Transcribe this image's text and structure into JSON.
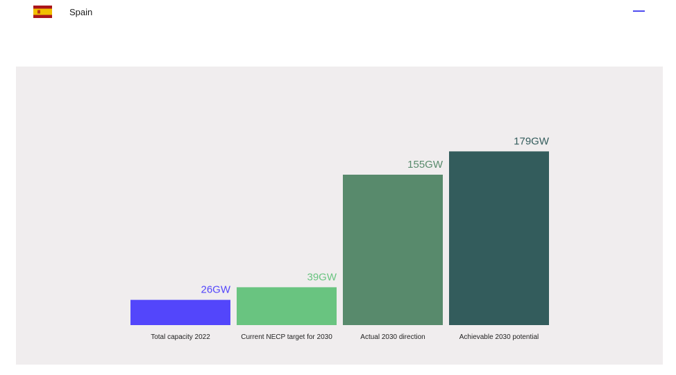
{
  "header": {
    "country": "Spain",
    "flag_icon": "spain-flag-icon",
    "collapse_icon": "minus-icon",
    "accent_color": "#4e4bf0"
  },
  "chart_data": {
    "type": "bar",
    "categories": [
      "Total capacity 2022",
      "Current NECP target for 2030",
      "Actual 2030 direction",
      "Achievable 2030 potential"
    ],
    "values": [
      26,
      39,
      155,
      179
    ],
    "value_labels": [
      "26GW",
      "39GW",
      "155GW",
      "179GW"
    ],
    "colors": [
      "#5346fb",
      "#69c480",
      "#588a6c",
      "#335c5c"
    ],
    "label_colors": [
      "#5346fb",
      "#69c480",
      "#588a6c",
      "#335c5c"
    ],
    "unit": "GW",
    "ylim": [
      0,
      200
    ],
    "grid": false,
    "background": "#f0edee"
  }
}
